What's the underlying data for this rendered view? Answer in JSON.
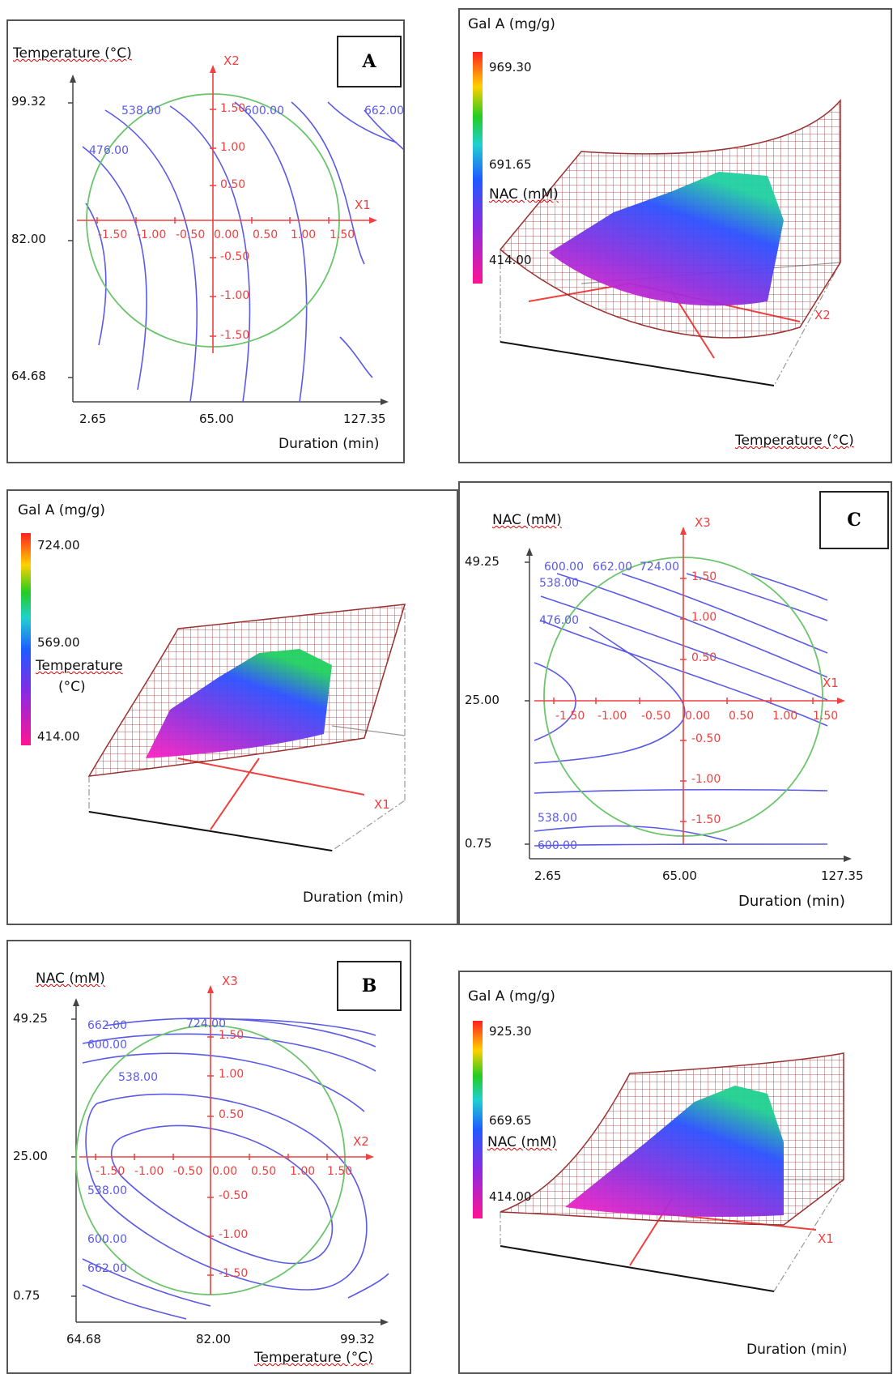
{
  "chart_data": [
    {
      "id": "A",
      "type": "contour",
      "panel_label": "A",
      "xlabel": "Duration (min)",
      "ylabel": "Temperature (°C)",
      "x_ticks": [
        "2.65",
        "65.00",
        "127.35"
      ],
      "y_ticks": [
        "99.32",
        "82.00",
        "64.68"
      ],
      "coded_axes": [
        "X1",
        "X2"
      ],
      "coded_ticks_x": [
        "-1.50",
        "-1.00",
        "-0.50",
        "0.00",
        "0.50",
        "1.00",
        "1.50"
      ],
      "coded_ticks_y": [
        "1.50",
        "1.00",
        "0.50",
        "-0.50",
        "-1.00",
        "-1.50"
      ],
      "contour_labels": [
        "538.00",
        "600.00",
        "662.00",
        "476.00"
      ]
    },
    {
      "id": "A3d",
      "type": "surface",
      "zlabel": "Gal A (mg/g)",
      "colorbar_ticks": [
        "969.30",
        "691.65",
        "414.00"
      ],
      "slice_label": "NAC (mM)",
      "axis_label": "X2",
      "xlabel": "Temperature (°C)"
    },
    {
      "id": "B3d",
      "type": "surface",
      "zlabel": "Gal A (mg/g)",
      "colorbar_ticks": [
        "724.00",
        "569.00",
        "414.00"
      ],
      "slice_label": "Temperature",
      "slice_unit": "(°C)",
      "axis_label": "X1",
      "xlabel": "Duration (min)"
    },
    {
      "id": "C",
      "type": "contour",
      "panel_label": "C",
      "xlabel": "Duration (min)",
      "ylabel": "NAC (mM)",
      "x_ticks": [
        "2.65",
        "65.00",
        "127.35"
      ],
      "y_ticks": [
        "49.25",
        "25.00",
        "0.75"
      ],
      "coded_axes": [
        "X1",
        "X3"
      ],
      "coded_ticks_x": [
        "-1.50",
        "-1.00",
        "-0.50",
        "0.00",
        "0.50",
        "1.00",
        "1.50"
      ],
      "coded_ticks_y": [
        "1.50",
        "1.00",
        "0.50",
        "-0.50",
        "-1.00",
        "-1.50"
      ],
      "contour_labels": [
        "600.00",
        "662.00",
        "724.00",
        "538.00",
        "476.00",
        "538.00",
        "600.00"
      ]
    },
    {
      "id": "B",
      "type": "contour",
      "panel_label": "B",
      "xlabel": "Temperature (°C)",
      "ylabel": "NAC (mM)",
      "x_ticks": [
        "64.68",
        "82.00",
        "99.32"
      ],
      "y_ticks": [
        "49.25",
        "25.00",
        "0.75"
      ],
      "coded_axes": [
        "X2",
        "X3"
      ],
      "coded_ticks_x": [
        "-1.50",
        "-1.00",
        "-0.50",
        "0.00",
        "0.50",
        "1.00",
        "1.50"
      ],
      "coded_ticks_y": [
        "1.50",
        "1.00",
        "0.50",
        "-0.50",
        "-1.00",
        "-1.50"
      ],
      "contour_labels": [
        "662.00",
        "724.00",
        "600.00",
        "538.00",
        "538.00",
        "600.00",
        "662.00"
      ]
    },
    {
      "id": "C3d",
      "type": "surface",
      "zlabel": "Gal A (mg/g)",
      "colorbar_ticks": [
        "925.30",
        "669.65",
        "414.00"
      ],
      "slice_label": "NAC (mM)",
      "axis_label": "X1",
      "xlabel": "Duration (min)"
    }
  ],
  "colors": {
    "contour": "#5a5ae6",
    "coded_axis": "#f04040",
    "circle": "#6cc46c",
    "mesh": "#9a3030"
  }
}
